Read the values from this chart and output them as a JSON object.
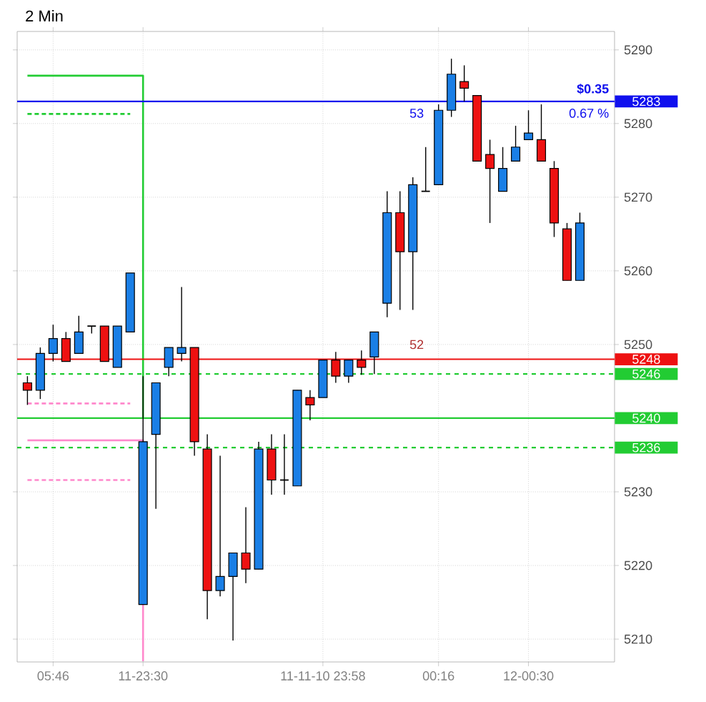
{
  "chart_data": {
    "type": "candlestick",
    "title": "2 Min",
    "categories": [
      null,
      null,
      "05:46",
      null,
      null,
      null,
      null,
      null,
      null,
      "11-23:30",
      null,
      null,
      null,
      null,
      null,
      null,
      null,
      null,
      null,
      null,
      null,
      null,
      null,
      "11-11-10 23:58",
      null,
      null,
      null,
      null,
      null,
      null,
      null,
      null,
      "00:16",
      null,
      null,
      null,
      null,
      null,
      null,
      "12-00:30",
      null,
      null,
      null,
      null
    ],
    "colors": [
      "#ee1111",
      "#1a7fe6",
      "#1a7fe6",
      "#ee1111",
      "#1a7fe6",
      "#000000",
      "#ee1111",
      "#1a7fe6",
      "#1a7fe6",
      "#1a7fe6",
      "#1a7fe6",
      "#1a7fe6",
      "#1a7fe6",
      "#ee1111",
      "#ee1111",
      "#1a7fe6",
      "#1a7fe6",
      "#ee1111",
      "#1a7fe6",
      "#ee1111",
      "#000000",
      "#1a7fe6",
      "#ee1111",
      "#1a7fe6",
      "#ee1111",
      "#1a7fe6",
      "#ee1111",
      "#1a7fe6",
      "#1a7fe6",
      "#ee1111",
      "#1a7fe6",
      "#000000",
      "#1a7fe6",
      "#1a7fe6",
      "#ee1111",
      "#ee1111",
      "#ee1111",
      "#1a7fe6",
      "#1a7fe6",
      "#1a7fe6",
      "#ee1111",
      "#ee1111",
      "#ee1111",
      "#1a7fe6"
    ],
    "ohlc": [
      [
        5244.8,
        5245.7,
        5241.8,
        5243.8
      ],
      [
        5243.8,
        5249.6,
        5242.6,
        5248.8
      ],
      [
        5248.8,
        5252.7,
        5247.7,
        5250.8
      ],
      [
        5250.8,
        5251.7,
        5247.7,
        5247.7
      ],
      [
        5248.8,
        5253.9,
        5248.8,
        5251.7
      ],
      [
        5252.5,
        5252.5,
        5251.5,
        5252.5
      ],
      [
        5252.5,
        5252.5,
        5247.7,
        5247.7
      ],
      [
        5246.9,
        5252.5,
        5246.9,
        5252.5
      ],
      [
        5251.7,
        5259.7,
        5251.7,
        5259.7
      ],
      [
        5214.7,
        5245.7,
        5214.7,
        5236.8
      ],
      [
        5237.8,
        5244.8,
        5227.7,
        5244.8
      ],
      [
        5246.9,
        5249.6,
        5245.7,
        5249.6
      ],
      [
        5248.8,
        5257.8,
        5247.7,
        5249.6
      ],
      [
        5249.6,
        5249.6,
        5234.9,
        5236.8
      ],
      [
        5235.8,
        5237.8,
        5212.7,
        5216.6
      ],
      [
        5216.6,
        5234.9,
        5215.8,
        5218.5
      ],
      [
        5218.5,
        5221.7,
        5209.8,
        5221.7
      ],
      [
        5221.7,
        5227.9,
        5217.6,
        5219.5
      ],
      [
        5219.5,
        5236.8,
        5219.5,
        5235.8
      ],
      [
        5235.8,
        5237.8,
        5229.6,
        5231.6
      ],
      [
        5231.6,
        5237.8,
        5229.6,
        5231.6
      ],
      [
        5230.8,
        5243.8,
        5230.8,
        5243.8
      ],
      [
        5242.8,
        5243.8,
        5239.7,
        5241.8
      ],
      [
        5242.8,
        5247.9,
        5242.8,
        5247.9
      ],
      [
        5247.9,
        5249.0,
        5244.8,
        5245.7
      ],
      [
        5245.7,
        5247.9,
        5244.8,
        5247.9
      ],
      [
        5247.9,
        5249.2,
        5245.9,
        5246.9
      ],
      [
        5248.3,
        5251.7,
        5246.0,
        5251.7
      ],
      [
        5255.6,
        5270.8,
        5253.7,
        5267.9
      ],
      [
        5267.9,
        5270.8,
        5254.7,
        5262.6
      ],
      [
        5262.6,
        5272.7,
        5254.7,
        5271.7
      ],
      [
        5270.8,
        5276.8,
        5270.8,
        5270.8
      ],
      [
        5271.7,
        5282.6,
        5271.7,
        5281.8
      ],
      [
        5281.8,
        5288.8,
        5280.9,
        5286.7
      ],
      [
        5285.7,
        5287.9,
        5283.0,
        5284.8
      ],
      [
        5283.8,
        5283.8,
        5274.9,
        5274.9
      ],
      [
        5275.8,
        5277.8,
        5266.5,
        5273.9
      ],
      [
        5270.8,
        5276.8,
        5270.8,
        5273.9
      ],
      [
        5274.9,
        5279.7,
        5274.9,
        5276.8
      ],
      [
        5277.8,
        5281.8,
        5277.8,
        5278.7
      ],
      [
        5277.8,
        5282.6,
        5274.9,
        5274.9
      ],
      [
        5273.9,
        5274.9,
        5264.6,
        5266.5
      ],
      [
        5265.7,
        5266.5,
        5258.7,
        5258.7
      ],
      [
        5258.7,
        5267.9,
        5258.7,
        5266.5
      ]
    ],
    "series": [
      {
        "type": "step",
        "color": "#22cc33",
        "line_style": "solid",
        "values": [
          5286.5,
          5286.5,
          5286.5,
          5286.5,
          5286.5,
          5286.5,
          5286.5,
          5286.5,
          5286.5,
          5240,
          null,
          null,
          null,
          null,
          null,
          null,
          null,
          null,
          null,
          null,
          null,
          null,
          null,
          null,
          null,
          null,
          null,
          null,
          null,
          null,
          null,
          null,
          null,
          null,
          null,
          null,
          null,
          null,
          null,
          null,
          null,
          null,
          null,
          null
        ]
      },
      {
        "type": "line",
        "color": "#22cc33",
        "line_style": "dashed",
        "values": [
          5281.3,
          5281.3,
          5281.3,
          5281.3,
          5281.3,
          5281.3,
          5281.3,
          5281.3,
          5281.3,
          null,
          null,
          null,
          null,
          null,
          null,
          null,
          null,
          null,
          null,
          null,
          null,
          null,
          null,
          null,
          null,
          null,
          null,
          null,
          null,
          null,
          null,
          null,
          null,
          null,
          null,
          null,
          null,
          null,
          null,
          null,
          null,
          null,
          null,
          null
        ]
      },
      {
        "type": "step",
        "color": "#ff88cc",
        "line_style": "solid",
        "values": [
          5237,
          5237,
          5237,
          5237,
          5237,
          5237,
          5237,
          5237,
          5237,
          5207,
          null,
          null,
          null,
          null,
          null,
          null,
          null,
          null,
          null,
          null,
          null,
          null,
          null,
          null,
          null,
          null,
          null,
          null,
          null,
          null,
          null,
          null,
          null,
          null,
          null,
          null,
          null,
          null,
          null,
          null,
          null,
          null,
          null,
          null
        ]
      },
      {
        "type": "line",
        "color": "#ff88cc",
        "line_style": "dashed",
        "values": [
          5242,
          5242,
          5242,
          5242,
          5242,
          5242,
          5242,
          5242,
          5242,
          null,
          null,
          null,
          null,
          null,
          null,
          null,
          null,
          null,
          null,
          null,
          null,
          null,
          null,
          null,
          null,
          null,
          null,
          null,
          null,
          null,
          null,
          null,
          null,
          null,
          null,
          null,
          null,
          null,
          null,
          null,
          null,
          null,
          null,
          null
        ]
      },
      {
        "type": "line",
        "color": "#ff88cc",
        "line_style": "dashed",
        "values": [
          5231.6,
          5231.6,
          5231.6,
          5231.6,
          5231.6,
          5231.6,
          5231.6,
          5231.6,
          5231.6,
          null,
          null,
          null,
          null,
          null,
          null,
          null,
          null,
          null,
          null,
          null,
          null,
          null,
          null,
          null,
          null,
          null,
          null,
          null,
          null,
          null,
          null,
          null,
          null,
          null,
          null,
          null,
          null,
          null,
          null,
          null,
          null,
          null,
          null,
          null
        ]
      }
    ],
    "ref_lines": [
      {
        "axis": "y",
        "value": 5283,
        "label": "5283",
        "color": "#1010ee",
        "line_style": "solid"
      },
      {
        "axis": "y",
        "value": 5248,
        "label": "5248",
        "color": "#ee1111",
        "line_style": "solid"
      },
      {
        "axis": "y",
        "value": 5246,
        "label": "5246",
        "color": "#22cc33",
        "line_style": "dashed"
      },
      {
        "axis": "y",
        "value": 5240,
        "label": "5240",
        "color": "#22cc33",
        "line_style": "solid"
      },
      {
        "axis": "y",
        "value": 5236,
        "label": "5236",
        "color": "#22cc33",
        "line_style": "dashed"
      }
    ],
    "annotations": [
      "$0.35",
      "0.67 %",
      "53",
      "52"
    ],
    "ylim": [
      5206.9,
      5292.5
    ],
    "yticks": [
      5210,
      5220,
      5230,
      5250,
      5260,
      5270,
      5280,
      5290
    ],
    "grid": true
  }
}
